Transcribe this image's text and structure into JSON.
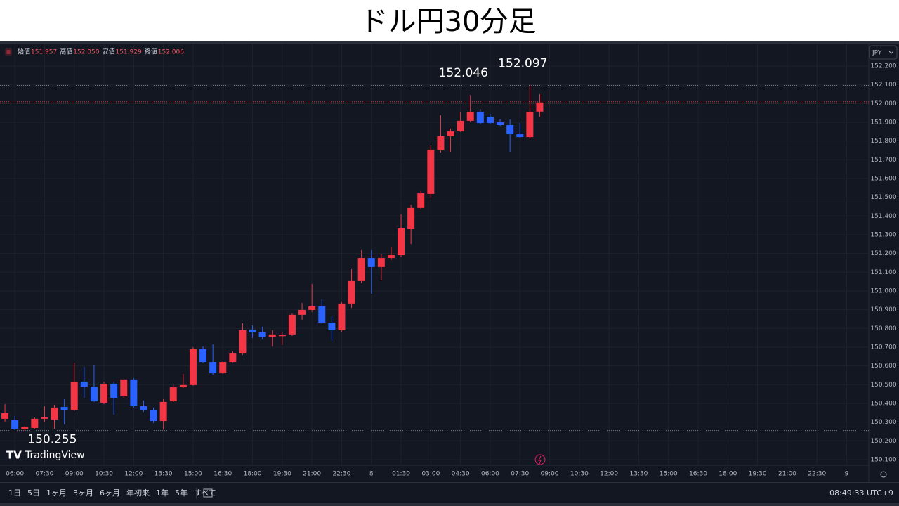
{
  "chart_data": {
    "type": "candlestick",
    "title": "ドル円30分足",
    "brand": "TradingView",
    "currency": "JPY",
    "ohlc_legend": [
      {
        "label": "始値",
        "value": "151.957"
      },
      {
        "label": "高値",
        "value": "152.050"
      },
      {
        "label": "安値",
        "value": "151.929"
      },
      {
        "label": "終値",
        "value": "152.006"
      }
    ],
    "categories": [
      null,
      "06:00",
      null,
      null,
      "07:30",
      null,
      null,
      "09:00",
      null,
      null,
      "10:30",
      null,
      null,
      "12:00",
      null,
      null,
      "13:30",
      null,
      null,
      "15:00",
      null,
      null,
      "16:30",
      null,
      null,
      "18:00",
      null,
      null,
      "19:30",
      null,
      null,
      "21:00",
      null,
      null,
      "22:30",
      null,
      null,
      "8",
      null,
      null,
      "01:30",
      null,
      null,
      "03:00",
      null,
      null,
      "04:30",
      null,
      null,
      "06:00",
      null,
      null,
      "07:30",
      null,
      null,
      "09:00",
      null,
      null,
      "10:30",
      null,
      null,
      "12:00",
      null,
      null,
      "13:30",
      null,
      null,
      "15:00",
      null,
      null,
      "16:30",
      null,
      null,
      "18:00",
      null,
      null,
      "19:30",
      null,
      null,
      "21:00",
      null,
      null,
      "22:30",
      null,
      null,
      "9",
      null,
      null
    ],
    "open": [
      150.318,
      150.31,
      150.262,
      150.269,
      150.318,
      150.314,
      150.381,
      150.366,
      150.516,
      150.49,
      150.404,
      150.505,
      150.438,
      150.528,
      150.385,
      150.363,
      150.306,
      150.411,
      150.486,
      150.498,
      150.689,
      150.621,
      150.561,
      150.621,
      150.666,
      150.794,
      150.779,
      150.756,
      150.759,
      150.768,
      150.873,
      150.899,
      150.918,
      150.831,
      150.79,
      150.933,
      151.053,
      151.176,
      151.128,
      151.176,
      151.191,
      151.33,
      151.443,
      151.518,
      151.75,
      151.825,
      151.851,
      151.908,
      151.956,
      151.93,
      151.9,
      151.885,
      151.836,
      151.821,
      151.957,
      null,
      null,
      null,
      null,
      null,
      null,
      null,
      null,
      null,
      null,
      null,
      null,
      null,
      null,
      null,
      null,
      null,
      null,
      null,
      null,
      null,
      null,
      null,
      null,
      null,
      null,
      null,
      null,
      null,
      null,
      null,
      null,
      null
    ],
    "high": [
      150.396,
      150.333,
      150.28,
      150.325,
      150.385,
      150.393,
      150.423,
      150.618,
      150.595,
      150.603,
      150.516,
      150.516,
      150.53,
      150.535,
      150.415,
      150.378,
      150.423,
      150.498,
      150.558,
      150.7,
      150.704,
      150.715,
      150.629,
      150.678,
      150.828,
      150.816,
      150.809,
      150.79,
      150.783,
      150.88,
      150.936,
      151.038,
      150.955,
      150.865,
      150.94,
      151.116,
      151.218,
      151.218,
      151.195,
      151.233,
      151.409,
      151.461,
      151.533,
      151.776,
      151.938,
      151.866,
      151.953,
      152.046,
      151.971,
      151.945,
      151.915,
      151.915,
      151.896,
      152.097,
      152.05,
      null,
      null,
      null,
      null,
      null,
      null,
      null,
      null,
      null,
      null,
      null,
      null,
      null,
      null,
      null,
      null,
      null,
      null,
      null,
      null,
      null,
      null,
      null,
      null,
      null,
      null,
      null,
      null,
      null,
      null,
      null,
      null,
      null
    ],
    "low": [
      150.303,
      150.258,
      150.255,
      150.265,
      150.303,
      150.265,
      150.288,
      150.359,
      150.43,
      150.408,
      150.396,
      150.34,
      150.43,
      150.378,
      150.355,
      150.295,
      150.26,
      150.408,
      150.483,
      150.494,
      150.618,
      150.554,
      150.558,
      150.618,
      150.659,
      150.749,
      150.741,
      150.704,
      150.711,
      150.76,
      150.846,
      150.888,
      150.824,
      150.734,
      150.783,
      150.91,
      151.041,
      150.985,
      151.056,
      151.165,
      151.18,
      151.251,
      151.435,
      151.495,
      151.739,
      151.743,
      151.848,
      151.9,
      151.889,
      151.893,
      151.878,
      151.743,
      151.818,
      151.81,
      151.929,
      null,
      null,
      null,
      null,
      null,
      null,
      null,
      null,
      null,
      null,
      null,
      null,
      null,
      null,
      null,
      null,
      null,
      null,
      null,
      null,
      null,
      null,
      null,
      null,
      null,
      null,
      null,
      null,
      null,
      null,
      null,
      null,
      null
    ],
    "close": [
      150.348,
      150.265,
      150.273,
      150.318,
      150.325,
      150.378,
      150.363,
      150.513,
      150.49,
      150.411,
      150.505,
      150.43,
      150.528,
      150.385,
      150.363,
      150.306,
      150.408,
      150.486,
      150.498,
      150.689,
      150.621,
      150.561,
      150.621,
      150.666,
      150.79,
      150.779,
      150.753,
      150.768,
      150.765,
      150.873,
      150.899,
      150.918,
      150.831,
      150.79,
      150.933,
      151.053,
      151.176,
      151.128,
      151.176,
      151.191,
      151.334,
      151.443,
      151.521,
      151.754,
      151.825,
      151.851,
      151.908,
      151.956,
      151.896,
      151.896,
      151.885,
      151.836,
      151.821,
      151.956,
      152.006,
      null,
      null,
      null,
      null,
      null,
      null,
      null,
      null,
      null,
      null,
      null,
      null,
      null,
      null,
      null,
      null,
      null,
      null,
      null,
      null,
      null,
      null,
      null,
      null,
      null,
      null,
      null,
      null,
      null,
      null,
      null,
      null,
      null
    ],
    "up_color": "#f23645",
    "down_color": "#2962ff",
    "ylim": [
      150.07,
      152.32
    ],
    "yticks": [
      {
        "value": 150.1,
        "label": "150.100"
      },
      {
        "value": 150.2,
        "label": "150.200"
      },
      {
        "value": 150.3,
        "label": "150.300"
      },
      {
        "value": 150.4,
        "label": "150.400"
      },
      {
        "value": 150.5,
        "label": "150.500"
      },
      {
        "value": 150.6,
        "label": "150.600"
      },
      {
        "value": 150.7,
        "label": "150.700"
      },
      {
        "value": 150.8,
        "label": "150.800"
      },
      {
        "value": 150.9,
        "label": "150.900"
      },
      {
        "value": 151.0,
        "label": "151.000"
      },
      {
        "value": 151.1,
        "label": "151.100"
      },
      {
        "value": 151.2,
        "label": "151.200"
      },
      {
        "value": 151.3,
        "label": "151.300"
      },
      {
        "value": 151.4,
        "label": "151.400"
      },
      {
        "value": 151.5,
        "label": "151.500"
      },
      {
        "value": 151.6,
        "label": "151.600"
      },
      {
        "value": 151.7,
        "label": "151.700"
      },
      {
        "value": 151.8,
        "label": "151.800"
      },
      {
        "value": 151.9,
        "label": "151.900"
      },
      {
        "value": 152.0,
        "label": "152.000"
      },
      {
        "value": 152.1,
        "label": "152.100"
      },
      {
        "value": 152.2,
        "label": "152.200"
      }
    ],
    "grid": true,
    "price_line": true,
    "annotations": [
      {
        "value": 152.046,
        "label": "152.046",
        "line": false
      },
      {
        "value": 152.097,
        "label": "152.097",
        "line": true
      },
      {
        "value": 150.255,
        "label": "150.255",
        "line": true
      }
    ],
    "toolbar": {
      "ranges": [
        "1日",
        "5日",
        "1ヶ月",
        "3ヶ月",
        "6ヶ月",
        "年初来",
        "1年",
        "5年",
        "すべて"
      ],
      "clock": "08:49:33 UTC+9"
    }
  }
}
